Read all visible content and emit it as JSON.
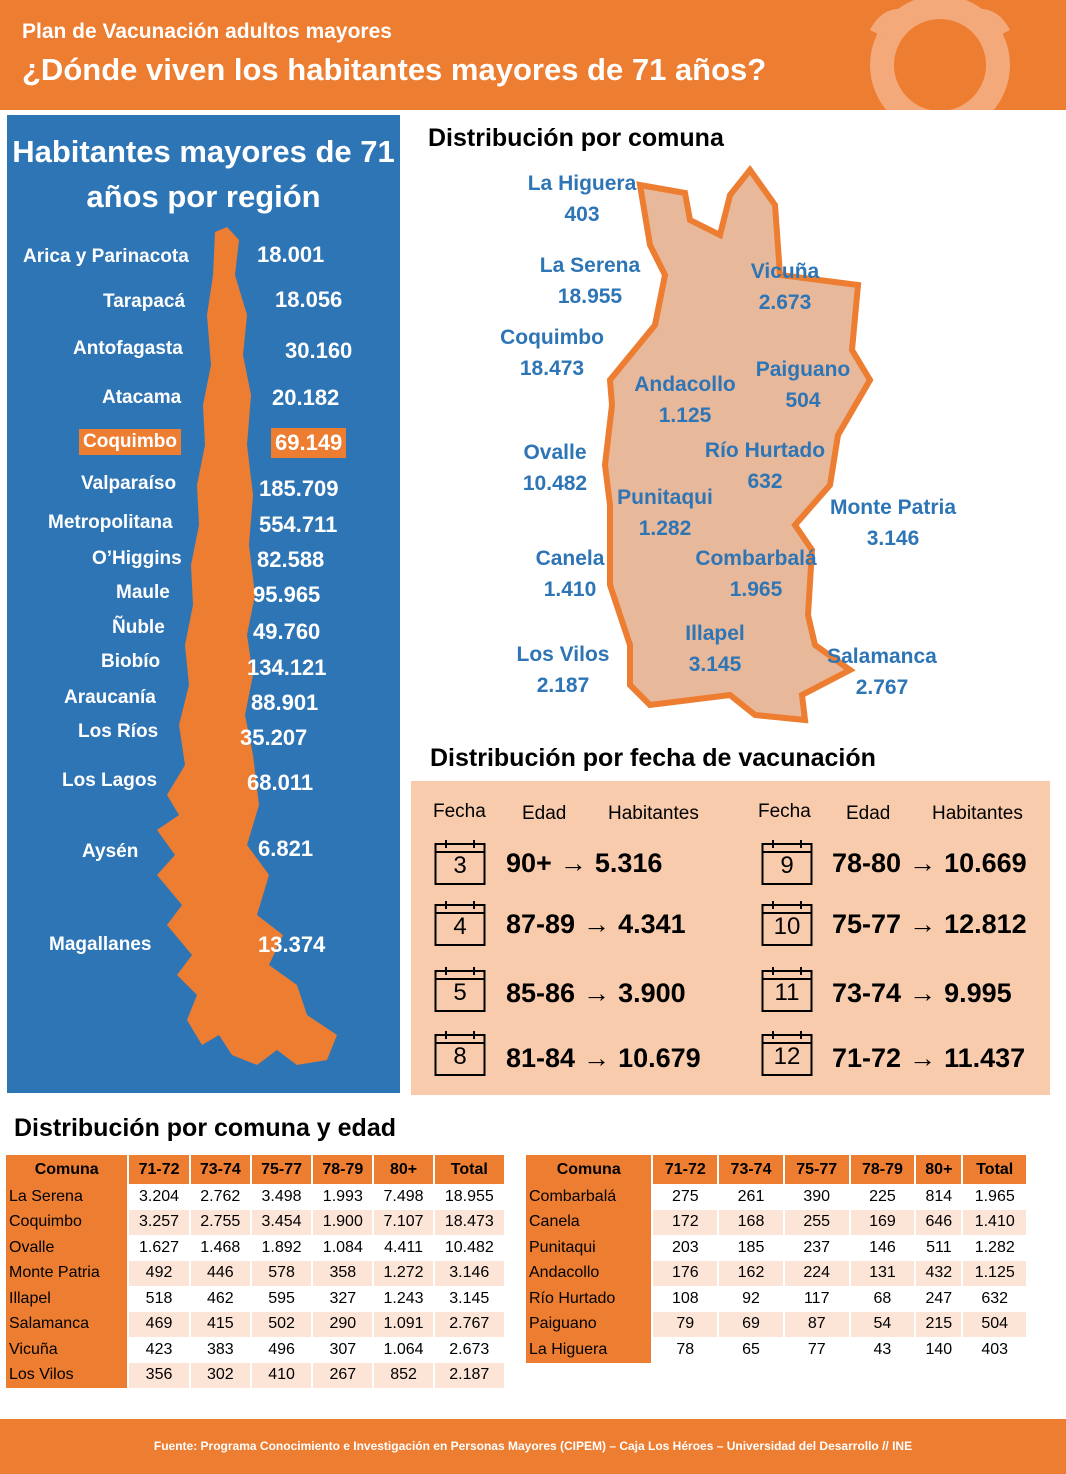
{
  "header": {
    "subtitle": "Plan de Vacunación adultos mayores",
    "title": "¿Dónde viven los habitantes mayores de 71 años?"
  },
  "regions": {
    "title": "Habitantes mayores de 71 años por región",
    "highlight_color": "#ED7D31",
    "panel_color": "#2E75B6",
    "items": [
      {
        "name": "Arica y Parinacota",
        "value": "18.001"
      },
      {
        "name": "Tarapacá",
        "value": "18.056"
      },
      {
        "name": "Antofagasta",
        "value": "30.160"
      },
      {
        "name": "Atacama",
        "value": "20.182"
      },
      {
        "name": "Coquimbo",
        "value": "69.149"
      },
      {
        "name": "Valparaíso",
        "value": "185.709"
      },
      {
        "name": "Metropolitana",
        "value": "554.711"
      },
      {
        "name": "O’Higgins",
        "value": "82.588"
      },
      {
        "name": "Maule",
        "value": "95.965"
      },
      {
        "name": "Ñuble",
        "value": "49.760"
      },
      {
        "name": "Biobío",
        "value": "134.121"
      },
      {
        "name": "Araucanía",
        "value": "88.901"
      },
      {
        "name": "Los Ríos",
        "value": "35.207"
      },
      {
        "name": "Los Lagos",
        "value": "68.011"
      },
      {
        "name": "Aysén",
        "value": "6.821"
      },
      {
        "name": "Magallanes",
        "value": "13.374"
      }
    ]
  },
  "comunas": {
    "title": "Distribución por comuna",
    "items": [
      {
        "name": "La Higuera",
        "value": "403"
      },
      {
        "name": "La Serena",
        "value": "18.955"
      },
      {
        "name": "Vicuña",
        "value": "2.673"
      },
      {
        "name": "Coquimbo",
        "value": "18.473"
      },
      {
        "name": "Andacollo",
        "value": "1.125"
      },
      {
        "name": "Paiguano",
        "value": "504"
      },
      {
        "name": "Ovalle",
        "value": "10.482"
      },
      {
        "name": "Río Hurtado",
        "value": "632"
      },
      {
        "name": "Punitaqui",
        "value": "1.282"
      },
      {
        "name": "Monte Patria",
        "value": "3.146"
      },
      {
        "name": "Canela",
        "value": "1.410"
      },
      {
        "name": "Combarbalá",
        "value": "1.965"
      },
      {
        "name": "Illapel",
        "value": "3.145"
      },
      {
        "name": "Los Vilos",
        "value": "2.187"
      },
      {
        "name": "Salamanca",
        "value": "2.767"
      }
    ]
  },
  "vaccination": {
    "title": "Distribución por fecha de vacunación",
    "headers": {
      "fecha": "Fecha",
      "edad": "Edad",
      "habitantes": "Habitantes"
    },
    "arrow": "→",
    "rows": [
      {
        "date": "3",
        "age": "90+",
        "count": "5.316"
      },
      {
        "date": "4",
        "age": "87-89",
        "count": "4.341"
      },
      {
        "date": "5",
        "age": "85-86",
        "count": "3.900"
      },
      {
        "date": "8",
        "age": "81-84",
        "count": "10.679"
      },
      {
        "date": "9",
        "age": "78-80",
        "count": "10.669"
      },
      {
        "date": "10",
        "age": "75-77",
        "count": "12.812"
      },
      {
        "date": "11",
        "age": "73-74",
        "count": "9.995"
      },
      {
        "date": "12",
        "age": "71-72",
        "count": "11.437"
      }
    ]
  },
  "tables": {
    "title": "Distribución por comuna y edad",
    "columns": [
      "Comuna",
      "71-72",
      "73-74",
      "75-77",
      "78-79",
      "80+",
      "Total"
    ],
    "left": [
      [
        "La Serena",
        "3.204",
        "2.762",
        "3.498",
        "1.993",
        "7.498",
        "18.955"
      ],
      [
        "Coquimbo",
        "3.257",
        "2.755",
        "3.454",
        "1.900",
        "7.107",
        "18.473"
      ],
      [
        "Ovalle",
        "1.627",
        "1.468",
        "1.892",
        "1.084",
        "4.411",
        "10.482"
      ],
      [
        "Monte Patria",
        "492",
        "446",
        "578",
        "358",
        "1.272",
        "3.146"
      ],
      [
        "Illapel",
        "518",
        "462",
        "595",
        "327",
        "1.243",
        "3.145"
      ],
      [
        "Salamanca",
        "469",
        "415",
        "502",
        "290",
        "1.091",
        "2.767"
      ],
      [
        "Vicuña",
        "423",
        "383",
        "496",
        "307",
        "1.064",
        "2.673"
      ],
      [
        "Los Vilos",
        "356",
        "302",
        "410",
        "267",
        "852",
        "2.187"
      ]
    ],
    "right": [
      [
        "Combarbalá",
        "275",
        "261",
        "390",
        "225",
        "814",
        "1.965"
      ],
      [
        "Canela",
        "172",
        "168",
        "255",
        "169",
        "646",
        "1.410"
      ],
      [
        "Punitaqui",
        "203",
        "185",
        "237",
        "146",
        "511",
        "1.282"
      ],
      [
        "Andacollo",
        "176",
        "162",
        "224",
        "131",
        "432",
        "1.125"
      ],
      [
        "Río Hurtado",
        "108",
        "92",
        "117",
        "68",
        "247",
        "632"
      ],
      [
        "Paiguano",
        "79",
        "69",
        "87",
        "54",
        "215",
        "504"
      ],
      [
        "La Higuera",
        "78",
        "65",
        "77",
        "43",
        "140",
        "403"
      ]
    ]
  },
  "footer": {
    "source": "Fuente: Programa Conocimiento e Investigación en Personas Mayores (CIPEM) – Caja Los Héroes – Universidad del Desarrollo // INE"
  }
}
